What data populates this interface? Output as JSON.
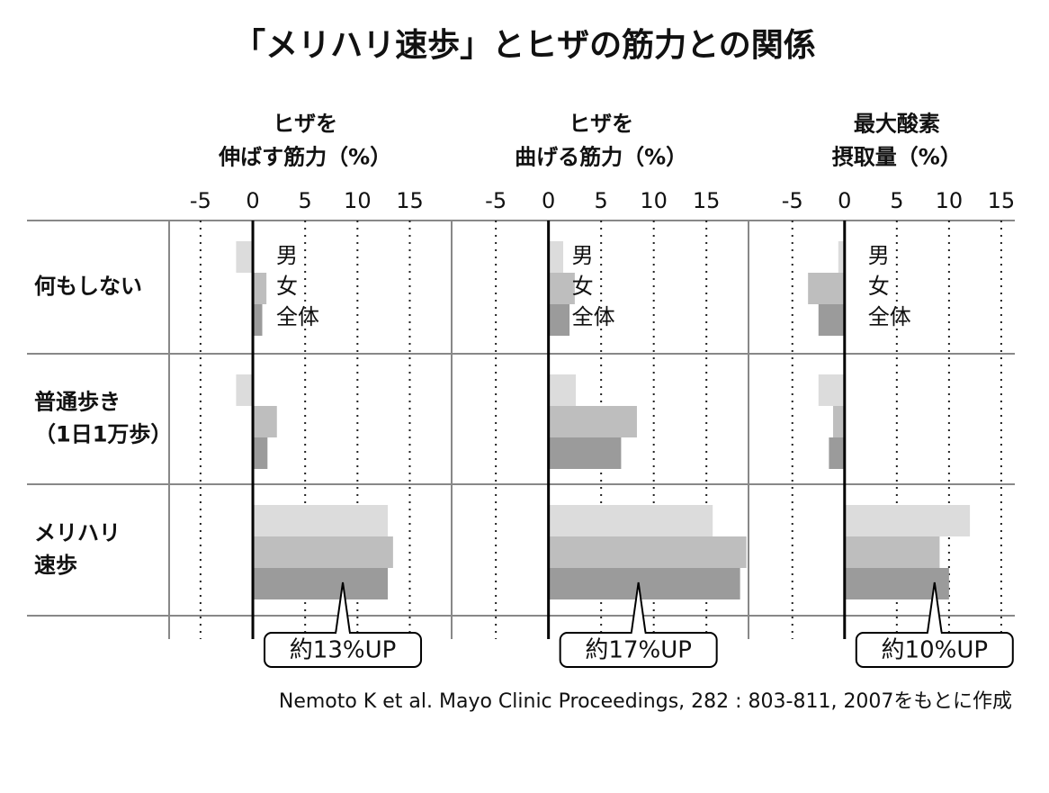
{
  "title": "「メリハリ速歩」とヒザの筋力との関係",
  "source": "Nemoto K et al. Mayo Clinic Proceedings, 282 : 803-811, 2007をもとに作成",
  "chart_data": [
    {
      "type": "bar",
      "title": "ヒザを\n伸ばす筋力（%）",
      "categories": [
        "何もしない",
        "普通歩き\n（1日1万歩）",
        "メリハリ\n速歩"
      ],
      "series": [
        {
          "name": "男",
          "color": "#dcdcdc",
          "values": [
            -1.6,
            -1.6,
            12.9
          ]
        },
        {
          "name": "女",
          "color": "#bebebe",
          "values": [
            1.3,
            2.3,
            13.4
          ]
        },
        {
          "name": "全体",
          "color": "#9b9b9b",
          "values": [
            0.9,
            1.4,
            12.9
          ]
        }
      ],
      "xlim": [
        -8,
        19
      ],
      "xticks": [
        -5,
        0,
        5,
        10,
        15
      ],
      "annotation": "約13%UP"
    },
    {
      "type": "bar",
      "title": "ヒザを\n曲げる筋力（%）",
      "series": [
        {
          "name": "男",
          "color": "#dcdcdc",
          "values": [
            1.4,
            2.6,
            15.6
          ]
        },
        {
          "name": "女",
          "color": "#bebebe",
          "values": [
            2.5,
            8.4,
            18.8
          ]
        },
        {
          "name": "全体",
          "color": "#9b9b9b",
          "values": [
            2.0,
            6.9,
            18.2
          ]
        }
      ],
      "xlim": [
        -9.2,
        19
      ],
      "xticks": [
        -5,
        0,
        5,
        10,
        15
      ],
      "annotation": "約17%UP"
    },
    {
      "type": "bar",
      "title": "最大酸素\n摂取量（%）",
      "series": [
        {
          "name": "男",
          "color": "#dcdcdc",
          "values": [
            -0.6,
            -2.5,
            12.0
          ]
        },
        {
          "name": "女",
          "color": "#bebebe",
          "values": [
            -3.5,
            -1.1,
            9.1
          ]
        },
        {
          "name": "全体",
          "color": "#9b9b9b",
          "values": [
            -2.5,
            -1.5,
            10.0
          ]
        }
      ],
      "xlim": [
        -9.2,
        16.3
      ],
      "xticks": [
        -5,
        0,
        5,
        10,
        15
      ],
      "annotation": "約10%UP"
    }
  ]
}
